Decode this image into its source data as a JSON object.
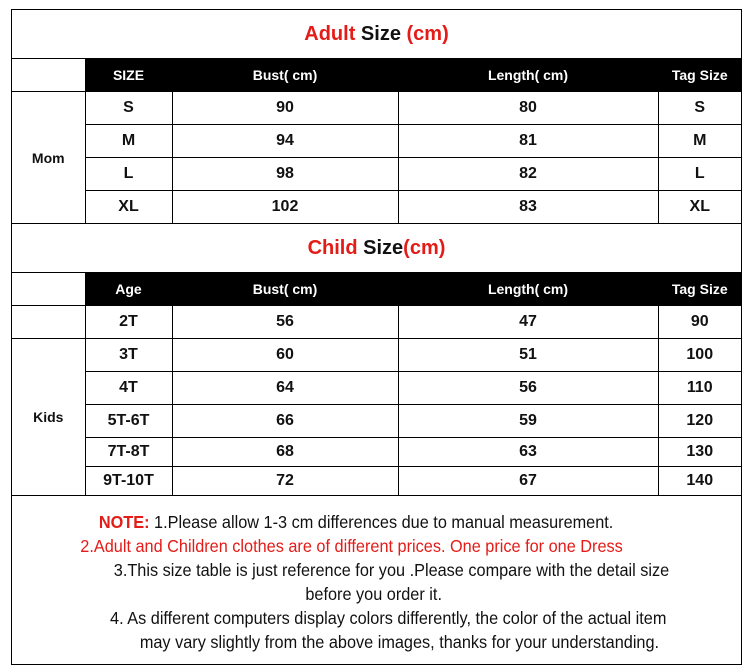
{
  "adult": {
    "title_a": "Adult",
    "title_b": " Size ",
    "title_c": "(cm)",
    "headers": [
      "SIZE",
      "Bust( cm)",
      "Length( cm)",
      "Tag Size"
    ],
    "group": "Mom",
    "rows": [
      [
        "S",
        "90",
        "80",
        "S"
      ],
      [
        "M",
        "94",
        "81",
        "M"
      ],
      [
        "L",
        "98",
        "82",
        "L"
      ],
      [
        "XL",
        "102",
        "83",
        "XL"
      ]
    ]
  },
  "child": {
    "title_a": "Child",
    "title_b": " Size",
    "title_c": "(cm)",
    "headers": [
      "Age",
      "Bust( cm)",
      "Length( cm)",
      "Tag Size"
    ],
    "first_row": [
      "2T",
      "56",
      "47",
      "90"
    ],
    "group": "Kids",
    "rows": [
      [
        "3T",
        "60",
        "51",
        "100"
      ],
      [
        "4T",
        "64",
        "56",
        "110"
      ],
      [
        "5T-6T",
        "66",
        "59",
        "120"
      ],
      [
        "7T-8T",
        "68",
        "63",
        "130"
      ],
      [
        "9T-10T",
        "72",
        "67",
        "140"
      ]
    ]
  },
  "notes": {
    "note_label": "NOTE:",
    "line1": " 1.Please allow 1-3 cm differences due to manual measurement.",
    "line2": "2.Adult and Children clothes are of different prices. One price for one Dress",
    "line3": "3.This size table is just reference for you .Please compare with the detail size",
    "line3b": "before you order  it.",
    "line4": "4. As different computers display colors differently, the color of the actual item",
    "line4b": "may vary slightly from the above images, thanks for your understanding."
  },
  "colors": {
    "accent": "#e41b17",
    "header_bg": "#000000"
  }
}
